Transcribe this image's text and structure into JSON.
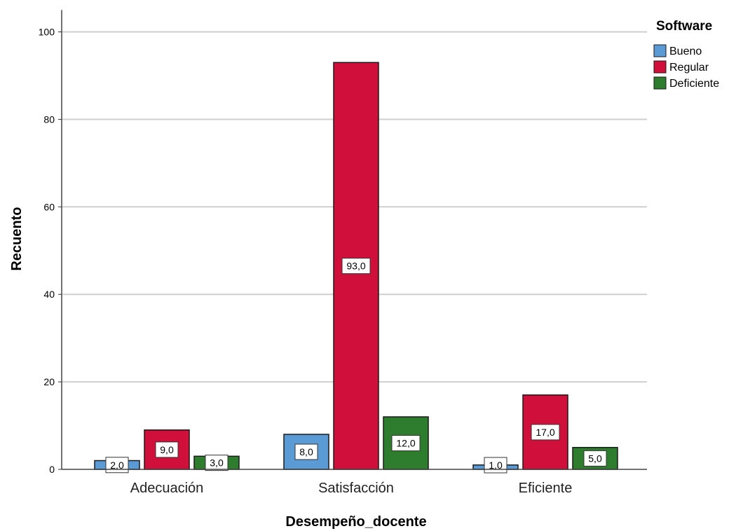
{
  "chart_data": {
    "type": "bar",
    "title": "",
    "xlabel": "Desempeño_docente",
    "ylabel": "Recuento",
    "categories": [
      "Adecuación",
      "Satisfacción",
      "Eficiente"
    ],
    "series": [
      {
        "name": "Bueno",
        "values": [
          2,
          8,
          1
        ],
        "labels": [
          "2,0",
          "8,0",
          "1,0"
        ],
        "color": "#5b9bd5"
      },
      {
        "name": "Regular",
        "values": [
          9,
          93,
          17
        ],
        "labels": [
          "9,0",
          "93,0",
          "17,0"
        ],
        "color": "#d0103a"
      },
      {
        "name": "Deficiente",
        "values": [
          3,
          12,
          5
        ],
        "labels": [
          "3,0",
          "12,0",
          "5,0"
        ],
        "color": "#2e7d2e"
      }
    ],
    "ylim": [
      0,
      105
    ],
    "yticks": [
      0,
      20,
      40,
      60,
      80,
      100
    ],
    "ytick_labels": [
      "0",
      "20",
      "40",
      "60",
      "80",
      "100"
    ],
    "grid": true,
    "legend": {
      "title": "Software",
      "position": "top-right"
    }
  }
}
